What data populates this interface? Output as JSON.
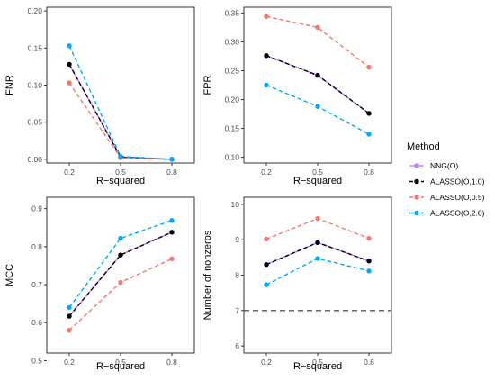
{
  "legend": {
    "title": "Method",
    "entries": [
      {
        "label": "NNG(O)",
        "color": "#C77CFF",
        "dashed": false
      },
      {
        "label": "ALASSO(O,1.0)",
        "color": "#000000",
        "dashed": true
      },
      {
        "label": "ALASSO(O,0.5)",
        "color": "#F8766D",
        "dashed": true
      },
      {
        "label": "ALASSO(O,2.0)",
        "color": "#00A9FF",
        "dashed": true
      }
    ]
  },
  "chart_data": [
    {
      "type": "line",
      "panel": "top-left",
      "ylabel": "FNR",
      "xlabel": "R−squared",
      "categories": [
        "0.2",
        "0.5",
        "0.8"
      ],
      "ylim": [
        -0.005,
        0.205
      ],
      "yticks": [
        0.0,
        0.05,
        0.1,
        0.15,
        0.2
      ],
      "ytick_labels": [
        "0.00",
        "0.05",
        "0.10",
        "0.15",
        "0.20"
      ],
      "series": [
        {
          "name": "NNG(O)",
          "color": "#C77CFF",
          "values": [
            0.128,
            0.003,
            0.0
          ]
        },
        {
          "name": "ALASSO(O,1.0)",
          "color": "#000000",
          "values": [
            0.128,
            0.003,
            0.0
          ]
        },
        {
          "name": "ALASSO(O,0.5)",
          "color": "#F8766D",
          "values": [
            0.103,
            0.002,
            0.0
          ]
        },
        {
          "name": "ALASSO(O,2.0)",
          "color": "#00A9FF",
          "values": [
            0.153,
            0.004,
            0.0
          ]
        }
      ]
    },
    {
      "type": "line",
      "panel": "top-right",
      "ylabel": "FPR",
      "xlabel": "R−squared",
      "categories": [
        "0.2",
        "0.5",
        "0.8"
      ],
      "ylim": [
        0.09,
        0.36
      ],
      "yticks": [
        0.1,
        0.15,
        0.2,
        0.25,
        0.3,
        0.35
      ],
      "ytick_labels": [
        "0.10",
        "0.15",
        "0.20",
        "0.25",
        "0.30",
        "0.35"
      ],
      "series": [
        {
          "name": "NNG(O)",
          "color": "#C77CFF",
          "values": [
            0.276,
            0.242,
            0.176
          ]
        },
        {
          "name": "ALASSO(O,1.0)",
          "color": "#000000",
          "values": [
            0.276,
            0.242,
            0.176
          ]
        },
        {
          "name": "ALASSO(O,0.5)",
          "color": "#F8766D",
          "values": [
            0.344,
            0.325,
            0.256
          ]
        },
        {
          "name": "ALASSO(O,2.0)",
          "color": "#00A9FF",
          "values": [
            0.225,
            0.188,
            0.14
          ]
        }
      ]
    },
    {
      "type": "line",
      "panel": "bottom-left",
      "ylabel": "MCC",
      "xlabel": "R−squared",
      "categories": [
        "0.2",
        "0.5",
        "0.8"
      ],
      "ylim": [
        0.52,
        0.93
      ],
      "yticks": [
        0.5,
        0.6,
        0.7,
        0.8,
        0.9
      ],
      "ytick_labels": [
        "0.5",
        "0.6",
        "0.7",
        "0.8",
        "0.9"
      ],
      "series": [
        {
          "name": "NNG(O)",
          "color": "#C77CFF",
          "values": [
            0.617,
            0.778,
            0.838
          ]
        },
        {
          "name": "ALASSO(O,1.0)",
          "color": "#000000",
          "values": [
            0.617,
            0.778,
            0.838
          ]
        },
        {
          "name": "ALASSO(O,0.5)",
          "color": "#F8766D",
          "values": [
            0.58,
            0.706,
            0.768
          ]
        },
        {
          "name": "ALASSO(O,2.0)",
          "color": "#00A9FF",
          "values": [
            0.64,
            0.822,
            0.869
          ]
        }
      ]
    },
    {
      "type": "line",
      "panel": "bottom-right",
      "ylabel": "Number of nonzeros",
      "xlabel": "R−squared",
      "categories": [
        "0.2",
        "0.5",
        "0.8"
      ],
      "ylim": [
        5.8,
        10.2
      ],
      "yticks": [
        6,
        7,
        8,
        9,
        10
      ],
      "ytick_labels": [
        "6",
        "7",
        "8",
        "9",
        "10"
      ],
      "hline": 7,
      "series": [
        {
          "name": "NNG(O)",
          "color": "#C77CFF",
          "values": [
            8.3,
            8.92,
            8.4
          ]
        },
        {
          "name": "ALASSO(O,1.0)",
          "color": "#000000",
          "values": [
            8.3,
            8.92,
            8.4
          ]
        },
        {
          "name": "ALASSO(O,0.5)",
          "color": "#F8766D",
          "values": [
            9.02,
            9.6,
            9.04
          ]
        },
        {
          "name": "ALASSO(O,2.0)",
          "color": "#00A9FF",
          "values": [
            7.73,
            8.47,
            8.12
          ]
        }
      ]
    }
  ]
}
